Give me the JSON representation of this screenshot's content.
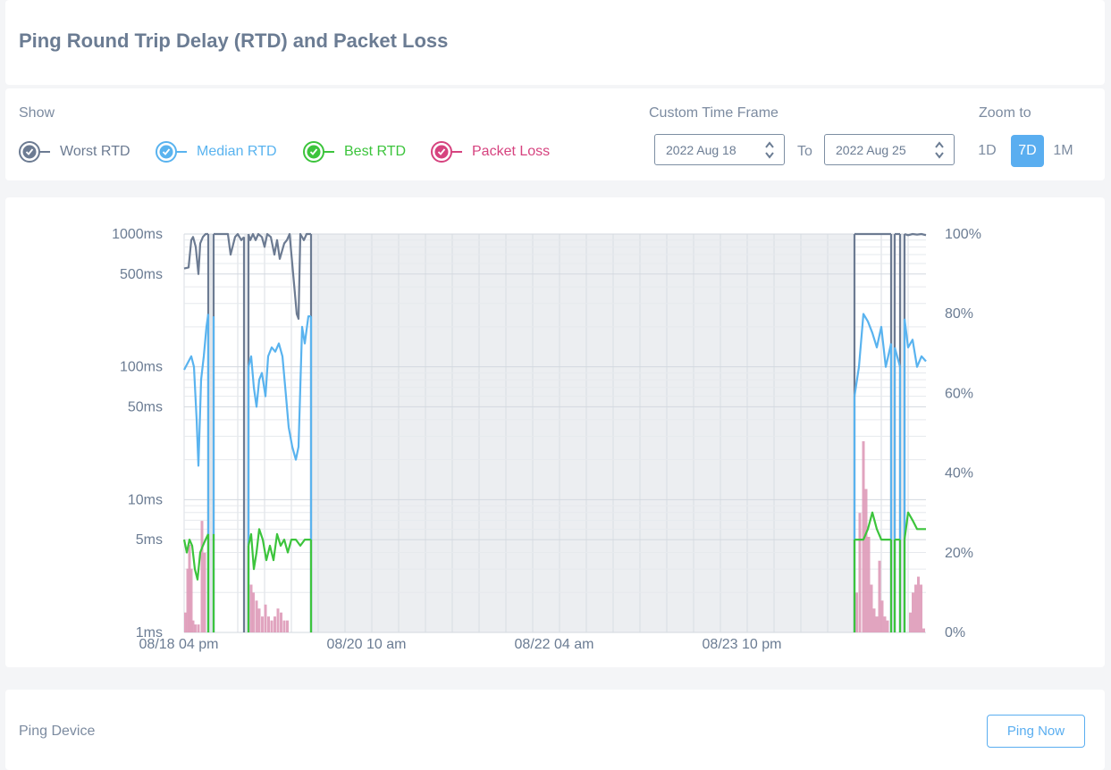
{
  "page": {
    "title": "Ping Round Trip Delay (RTD) and Packet Loss"
  },
  "controls": {
    "show_label": "Show",
    "legend": [
      {
        "key": "worst",
        "label": "Worst RTD",
        "color": "#6c7b92",
        "checked": true
      },
      {
        "key": "median",
        "label": "Median RTD",
        "color": "#59b3ef",
        "checked": true
      },
      {
        "key": "best",
        "label": "Best RTD",
        "color": "#3cc43c",
        "checked": true
      },
      {
        "key": "loss",
        "label": "Packet Loss",
        "color": "#d6437f",
        "checked": true
      }
    ],
    "timeframe_label": "Custom Time Frame",
    "from_date": "2022 Aug 18",
    "to_label": "To",
    "to_date": "2022 Aug 25",
    "zoom_label": "Zoom to",
    "zoom_options": [
      "1D",
      "7D",
      "1M"
    ],
    "zoom_selected": "7D"
  },
  "chart_data": {
    "type": "line",
    "title": "",
    "y_left": {
      "scale": "log",
      "range_ms": [
        1,
        1000
      ],
      "tick_labels": [
        "1000ms",
        "500ms",
        "100ms",
        "50ms",
        "10ms",
        "5ms",
        "1ms"
      ],
      "tick_values": [
        1000,
        500,
        100,
        50,
        10,
        5,
        1
      ]
    },
    "y_right": {
      "range_pct": [
        0,
        100
      ],
      "tick_labels": [
        "100%",
        "80%",
        "60%",
        "40%",
        "20%",
        "0%"
      ],
      "tick_values": [
        100,
        80,
        60,
        40,
        20,
        0
      ]
    },
    "x": {
      "range_hours_from_first_tick": [
        0,
        166
      ],
      "tick_labels": [
        "08/18 04 pm",
        "08/20 10 am",
        "08/22 04 am",
        "08/23 10 pm"
      ],
      "tick_hours": [
        0,
        42,
        84,
        126
      ]
    },
    "grid": true,
    "offline_ranges_hours": [
      [
        5.4,
        6.6
      ],
      [
        13.4,
        14.4
      ],
      [
        28.4,
        150.0
      ],
      [
        158.2,
        159.0
      ],
      [
        160.2,
        161.2
      ]
    ],
    "online_segments_hours": [
      [
        0,
        5.4
      ],
      [
        6.6,
        13.4
      ],
      [
        14.4,
        28.4
      ],
      [
        150.0,
        158.2
      ],
      [
        159.0,
        160.2
      ],
      [
        161.2,
        166
      ]
    ],
    "series": [
      {
        "name": "Worst RTD",
        "unit": "ms",
        "color": "#6c7b92",
        "points": [
          [
            0,
            550
          ],
          [
            1,
            560
          ],
          [
            1.6,
            900
          ],
          [
            2,
            950
          ],
          [
            2.6,
            800
          ],
          [
            3.2,
            500
          ],
          [
            3.6,
            850
          ],
          [
            4.2,
            950
          ],
          [
            4.8,
            1000
          ],
          [
            5.4,
            1000
          ],
          [
            6.6,
            1000
          ],
          [
            7.0,
            1000
          ],
          [
            9.8,
            1000
          ],
          [
            10.4,
            700
          ],
          [
            11.4,
            950
          ],
          [
            12,
            1000
          ],
          [
            12.8,
            900
          ],
          [
            13.4,
            950
          ],
          [
            14.4,
            1000
          ],
          [
            14.8,
            900
          ],
          [
            15.4,
            1000
          ],
          [
            16.0,
            900
          ],
          [
            16.6,
            1000
          ],
          [
            17.4,
            950
          ],
          [
            18,
            800
          ],
          [
            18.6,
            1000
          ],
          [
            19.4,
            950
          ],
          [
            20.2,
            700
          ],
          [
            20.8,
            900
          ],
          [
            21.4,
            650
          ],
          [
            22.4,
            850
          ],
          [
            23.0,
            900
          ],
          [
            23.6,
            1000
          ],
          [
            25.2,
            250
          ],
          [
            25.6,
            230
          ],
          [
            26.0,
            1000
          ],
          [
            26.8,
            900
          ],
          [
            27.4,
            1000
          ],
          [
            28.4,
            1000
          ],
          [
            150,
            1000
          ],
          [
            152,
            1000
          ],
          [
            154,
            1000
          ],
          [
            156,
            1000
          ],
          [
            158.2,
            1000
          ],
          [
            159,
            1000
          ],
          [
            160.2,
            1000
          ],
          [
            161.2,
            1000
          ],
          [
            162,
            980
          ],
          [
            163,
            1000
          ],
          [
            164,
            990
          ],
          [
            165,
            1000
          ],
          [
            166,
            980
          ]
        ]
      },
      {
        "name": "Median RTD",
        "unit": "ms",
        "color": "#59b3ef",
        "points": [
          [
            0,
            95
          ],
          [
            1,
            110
          ],
          [
            1.6,
            120
          ],
          [
            2.2,
            100
          ],
          [
            2.8,
            40
          ],
          [
            3.2,
            18
          ],
          [
            3.8,
            80
          ],
          [
            4.4,
            120
          ],
          [
            5.0,
            200
          ],
          [
            5.4,
            250
          ],
          [
            6.6,
            240
          ],
          [
            14.4,
            100
          ],
          [
            15.0,
            120
          ],
          [
            15.6,
            70
          ],
          [
            16.2,
            50
          ],
          [
            16.8,
            80
          ],
          [
            17.4,
            90
          ],
          [
            18.2,
            60
          ],
          [
            18.8,
            120
          ],
          [
            19.6,
            140
          ],
          [
            20.4,
            130
          ],
          [
            21.2,
            150
          ],
          [
            22.0,
            120
          ],
          [
            22.8,
            60
          ],
          [
            23.4,
            35
          ],
          [
            24.2,
            25
          ],
          [
            25.0,
            20
          ],
          [
            25.6,
            25
          ],
          [
            26.4,
            200
          ],
          [
            27.0,
            150
          ],
          [
            27.8,
            240
          ],
          [
            28.4,
            240
          ],
          [
            150,
            60
          ],
          [
            151,
            100
          ],
          [
            152,
            250
          ],
          [
            153,
            220
          ],
          [
            154,
            180
          ],
          [
            155,
            140
          ],
          [
            156,
            200
          ],
          [
            157,
            100
          ],
          [
            158.2,
            150
          ],
          [
            159,
            140
          ],
          [
            160.2,
            100
          ],
          [
            161.2,
            230
          ],
          [
            162,
            140
          ],
          [
            163,
            160
          ],
          [
            164,
            100
          ],
          [
            165,
            120
          ],
          [
            166,
            110
          ]
        ]
      },
      {
        "name": "Best RTD",
        "unit": "ms",
        "color": "#3cc43c",
        "points": [
          [
            0,
            5
          ],
          [
            0.6,
            4
          ],
          [
            1.2,
            5
          ],
          [
            1.8,
            4.5
          ],
          [
            2.4,
            3
          ],
          [
            3.0,
            2.5
          ],
          [
            3.6,
            4
          ],
          [
            4.2,
            4.5
          ],
          [
            4.8,
            5
          ],
          [
            5.4,
            5.5
          ],
          [
            6.6,
            5.5
          ],
          [
            14.4,
            4.5
          ],
          [
            15.0,
            5.5
          ],
          [
            15.6,
            3
          ],
          [
            16.2,
            4
          ],
          [
            16.8,
            6
          ],
          [
            17.6,
            5
          ],
          [
            18.4,
            3.5
          ],
          [
            19.2,
            4.5
          ],
          [
            20.0,
            3.5
          ],
          [
            20.8,
            5.5
          ],
          [
            21.6,
            4.5
          ],
          [
            22.4,
            5
          ],
          [
            23.2,
            4
          ],
          [
            24.0,
            5
          ],
          [
            25.0,
            5
          ],
          [
            26.0,
            4.5
          ],
          [
            27.0,
            5
          ],
          [
            28.4,
            5
          ],
          [
            150,
            5
          ],
          [
            151,
            5
          ],
          [
            152,
            5
          ],
          [
            153,
            6
          ],
          [
            154,
            8
          ],
          [
            155,
            6
          ],
          [
            156,
            5
          ],
          [
            157,
            5
          ],
          [
            158.2,
            5
          ],
          [
            159,
            5
          ],
          [
            160.2,
            5
          ],
          [
            161.2,
            5
          ],
          [
            162,
            8
          ],
          [
            163,
            7
          ],
          [
            164,
            6
          ],
          [
            165,
            6
          ],
          [
            166,
            6
          ]
        ]
      },
      {
        "name": "Packet Loss",
        "unit": "%",
        "color": "#de9ab8",
        "points": [
          [
            0.3,
            5
          ],
          [
            0.8,
            16
          ],
          [
            1.2,
            22
          ],
          [
            1.6,
            16
          ],
          [
            2.0,
            3
          ],
          [
            2.5,
            2
          ],
          [
            3.2,
            2
          ],
          [
            4.0,
            28
          ],
          [
            4.6,
            20
          ],
          [
            15.0,
            12
          ],
          [
            15.5,
            10
          ],
          [
            16.2,
            8
          ],
          [
            16.8,
            6
          ],
          [
            17.5,
            4
          ],
          [
            18.2,
            7
          ],
          [
            18.9,
            4
          ],
          [
            19.6,
            3
          ],
          [
            20.3,
            4
          ],
          [
            21.0,
            6
          ],
          [
            21.7,
            5
          ],
          [
            22.4,
            3
          ],
          [
            23.1,
            3
          ],
          [
            150.5,
            10
          ],
          [
            151.2,
            30
          ],
          [
            152,
            48
          ],
          [
            152.6,
            36
          ],
          [
            153.2,
            24
          ],
          [
            153.8,
            12
          ],
          [
            154.4,
            6
          ],
          [
            155.0,
            4
          ],
          [
            155.6,
            18
          ],
          [
            156.2,
            8
          ],
          [
            156.8,
            4
          ],
          [
            157.4,
            3
          ],
          [
            162.5,
            5
          ],
          [
            163.1,
            10
          ],
          [
            163.7,
            12
          ],
          [
            164.3,
            14
          ],
          [
            164.9,
            12
          ],
          [
            165.5,
            1
          ]
        ]
      }
    ]
  },
  "ping": {
    "label": "Ping Device",
    "button_label": "Ping Now"
  }
}
